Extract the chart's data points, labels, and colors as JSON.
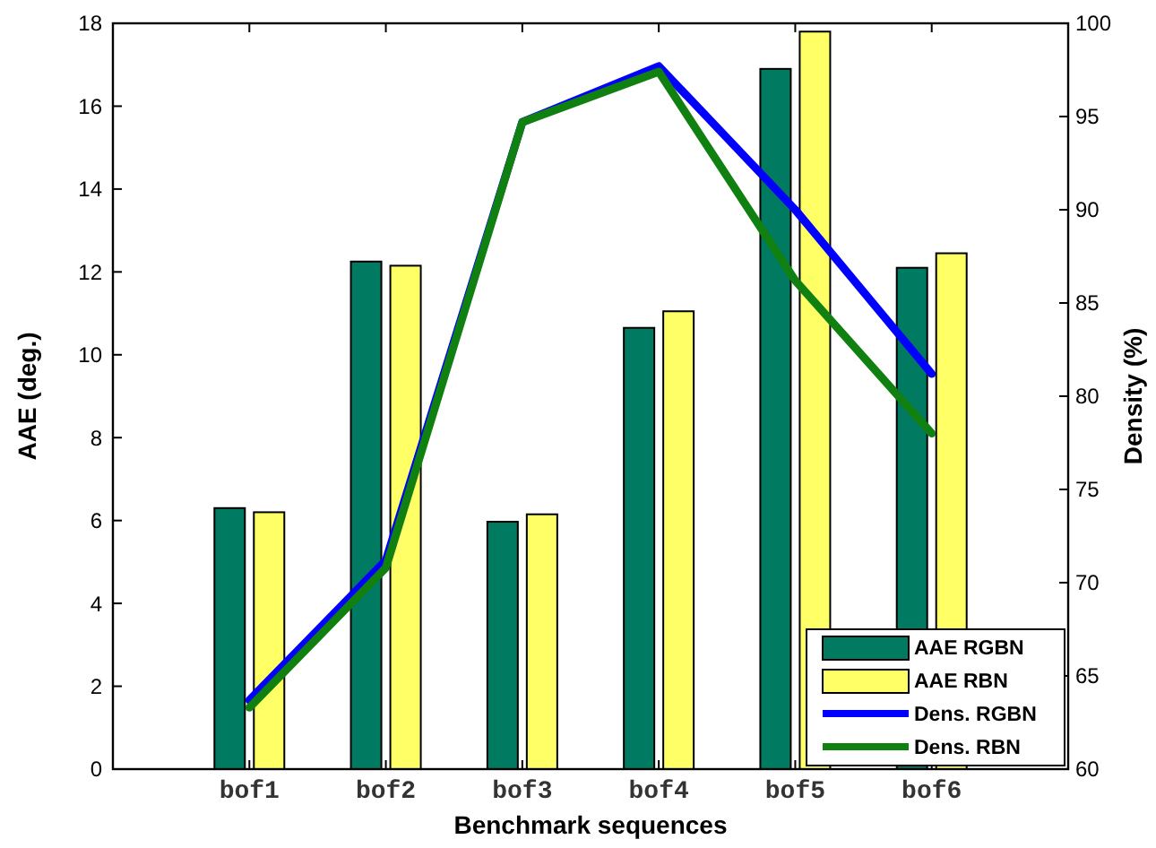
{
  "chart_data": {
    "type": "bar",
    "xlabel": "Benchmark sequences",
    "ylabel": "AAE (deg.)",
    "y2label": "Density (%)",
    "categories": [
      "bof1",
      "bof2",
      "bof3",
      "bof4",
      "bof5",
      "bof6"
    ],
    "series": [
      {
        "name": "AAE RGBN",
        "color": "#007a60",
        "values": [
          6.3,
          12.25,
          5.97,
          10.65,
          16.9,
          12.1
        ]
      },
      {
        "name": "AAE RBN",
        "color": "#ffff66",
        "values": [
          6.2,
          12.15,
          6.15,
          11.05,
          17.8,
          12.45
        ]
      },
      {
        "name": "Dens. RGBN",
        "type": "line",
        "axis": "y2",
        "color": "#0000ff",
        "values": [
          63.7,
          71.2,
          94.7,
          97.7,
          90.0,
          81.2
        ]
      },
      {
        "name": "Dens. RBN",
        "type": "line",
        "axis": "y2",
        "color": "#108010",
        "values": [
          63.3,
          70.8,
          94.7,
          97.4,
          86.2,
          78.0
        ]
      }
    ],
    "ylim": [
      0,
      18
    ],
    "yticks": [
      0,
      2,
      4,
      6,
      8,
      10,
      12,
      14,
      16,
      18
    ],
    "y2lim": [
      60,
      100
    ],
    "y2ticks": [
      60,
      65,
      70,
      75,
      80,
      85,
      90,
      95,
      100
    ],
    "legend": "bottom right",
    "grid": false
  }
}
